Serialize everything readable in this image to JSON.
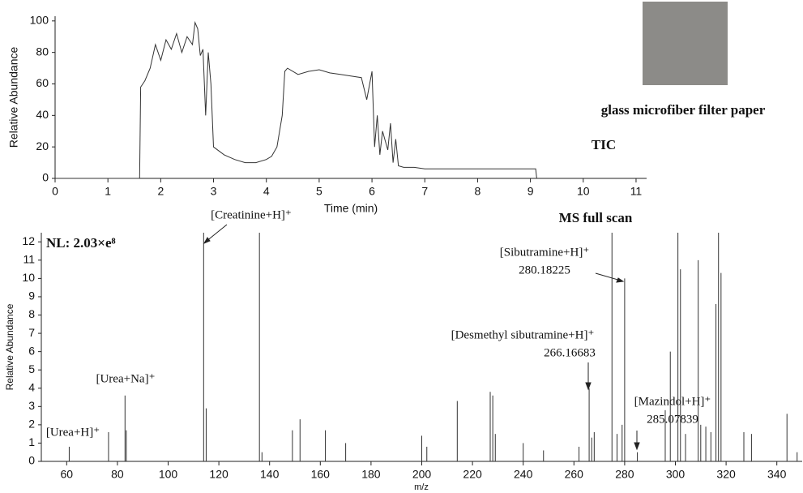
{
  "chart_data": [
    {
      "type": "line",
      "ylabel": "Relative Abundance",
      "xlabel": "Time (min)",
      "color": "#333333",
      "annotations": [
        "glass microfiber filter paper",
        "TIC"
      ],
      "x": [
        0,
        1.5,
        1.6,
        1.62,
        1.7,
        1.8,
        1.9,
        2.0,
        2.1,
        2.2,
        2.3,
        2.4,
        2.5,
        2.6,
        2.65,
        2.7,
        2.75,
        2.8,
        2.85,
        2.9,
        2.95,
        3.0,
        3.2,
        3.4,
        3.6,
        3.8,
        4.0,
        4.1,
        4.2,
        4.3,
        4.35,
        4.4,
        4.6,
        4.8,
        5.0,
        5.2,
        5.4,
        5.6,
        5.8,
        5.9,
        6.0,
        6.05,
        6.1,
        6.15,
        6.2,
        6.3,
        6.35,
        6.4,
        6.45,
        6.5,
        6.6,
        6.8,
        7.0,
        7.5,
        8.0,
        8.5,
        9.0,
        9.1,
        9.12
      ],
      "values": [
        0,
        0,
        0,
        58,
        62,
        70,
        85,
        75,
        88,
        82,
        92,
        80,
        90,
        85,
        99,
        95,
        78,
        82,
        40,
        80,
        60,
        20,
        15,
        12,
        10,
        10,
        12,
        14,
        20,
        40,
        68,
        70,
        66,
        68,
        69,
        67,
        66,
        65,
        64,
        50,
        68,
        20,
        40,
        15,
        30,
        18,
        35,
        10,
        25,
        8,
        7,
        7,
        6,
        6,
        6,
        6,
        6,
        6,
        0
      ],
      "xlim": [
        0,
        11.2
      ],
      "xticks": [
        0,
        1,
        2,
        3,
        4,
        5,
        6,
        7,
        8,
        9,
        10,
        11
      ],
      "ylim": [
        0,
        103
      ],
      "yticks": [
        0,
        20,
        40,
        60,
        80,
        100
      ]
    },
    {
      "type": "stem",
      "ylabel": "Relative Abundance",
      "xlabel": "m/z",
      "color": "#333333",
      "annotations": [
        "MS full scan",
        "NL: 2.03×e⁸",
        "[Creatinine+H]⁺",
        "[Urea+Na]⁺",
        "[Urea+H]⁺",
        "[Sibutramine+H]⁺",
        "280.18225",
        "[Desmethyl sibutramine+H]⁺",
        "266.16683",
        "[Mazindol+H]⁺",
        "285.07839"
      ],
      "x": [
        61,
        76.5,
        83,
        83.5,
        114,
        115,
        136,
        137,
        149,
        152,
        162,
        170,
        200,
        202,
        214,
        227,
        228,
        229,
        240,
        248,
        262,
        266,
        267,
        268,
        275,
        277,
        279,
        280,
        285,
        296,
        298,
        301,
        302,
        304,
        309,
        310,
        312,
        314,
        316,
        317,
        318,
        327,
        330,
        344,
        348
      ],
      "values": [
        0.8,
        1.6,
        3.6,
        1.7,
        12.5,
        2.9,
        12.5,
        0.5,
        1.7,
        2.3,
        1.7,
        1.0,
        1.4,
        0.8,
        3.3,
        3.8,
        3.6,
        1.5,
        1.0,
        0.6,
        0.8,
        4.0,
        1.3,
        1.6,
        12.5,
        1.5,
        2.0,
        10.0,
        0.5,
        2.8,
        6.0,
        12.5,
        10.5,
        1.5,
        11.0,
        2.0,
        1.9,
        1.6,
        8.6,
        12.5,
        10.3,
        1.6,
        1.5,
        2.6,
        0.5
      ],
      "xlim": [
        50,
        350
      ],
      "xticks": [
        60,
        80,
        100,
        120,
        140,
        160,
        180,
        200,
        220,
        240,
        260,
        280,
        300,
        320,
        340
      ],
      "ylim": [
        0,
        12.5
      ],
      "yticks": [
        0,
        1,
        2,
        3,
        4,
        5,
        6,
        7,
        8,
        9,
        10,
        11,
        12
      ]
    }
  ]
}
